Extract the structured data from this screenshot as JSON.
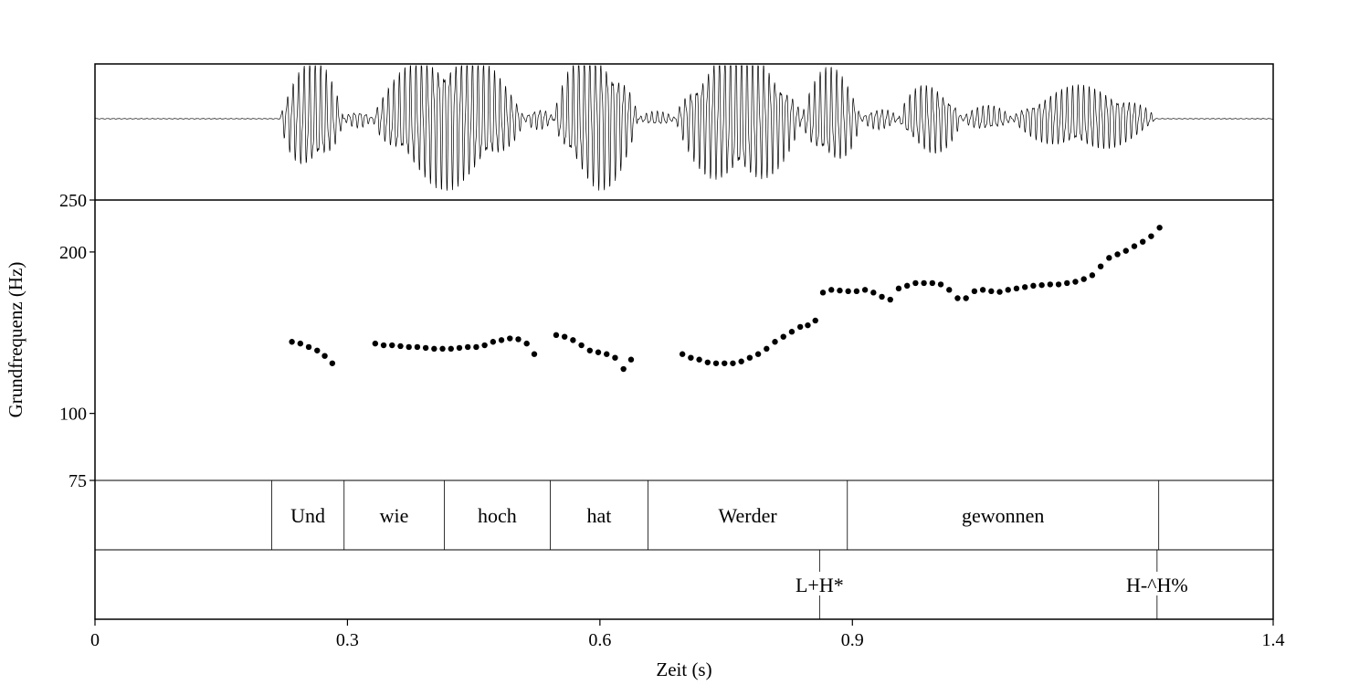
{
  "chart_data": {
    "type": "scatter",
    "title": "",
    "xlabel": "Zeit (s)",
    "ylabel": "Grundfrequenz (Hz)",
    "xlim": [
      0,
      1.4
    ],
    "ylim": [
      75,
      250
    ],
    "y_scale": "log",
    "grid": false,
    "x_ticks": [
      {
        "value": 0,
        "label": "0"
      },
      {
        "value": 0.3,
        "label": "0.3"
      },
      {
        "value": 0.6,
        "label": "0.6"
      },
      {
        "value": 0.9,
        "label": "0.9"
      },
      {
        "value": 1.4,
        "label": "1.4"
      }
    ],
    "y_ticks": [
      {
        "value": 250,
        "label": "250"
      },
      {
        "value": 200,
        "label": "200"
      },
      {
        "value": 100,
        "label": "100"
      },
      {
        "value": 75,
        "label": "75"
      }
    ],
    "pitch_points": [
      {
        "x": 0.234,
        "y": 136
      },
      {
        "x": 0.244,
        "y": 135
      },
      {
        "x": 0.254,
        "y": 133
      },
      {
        "x": 0.264,
        "y": 131
      },
      {
        "x": 0.273,
        "y": 128
      },
      {
        "x": 0.282,
        "y": 124
      },
      {
        "x": 0.333,
        "y": 135
      },
      {
        "x": 0.343,
        "y": 134
      },
      {
        "x": 0.353,
        "y": 134
      },
      {
        "x": 0.363,
        "y": 133.5
      },
      {
        "x": 0.373,
        "y": 133
      },
      {
        "x": 0.383,
        "y": 133
      },
      {
        "x": 0.393,
        "y": 132.5
      },
      {
        "x": 0.403,
        "y": 132
      },
      {
        "x": 0.413,
        "y": 132
      },
      {
        "x": 0.423,
        "y": 132
      },
      {
        "x": 0.433,
        "y": 132.5
      },
      {
        "x": 0.443,
        "y": 133
      },
      {
        "x": 0.453,
        "y": 133
      },
      {
        "x": 0.463,
        "y": 134
      },
      {
        "x": 0.473,
        "y": 136
      },
      {
        "x": 0.483,
        "y": 137
      },
      {
        "x": 0.493,
        "y": 138
      },
      {
        "x": 0.503,
        "y": 137.5
      },
      {
        "x": 0.513,
        "y": 135
      },
      {
        "x": 0.522,
        "y": 129
      },
      {
        "x": 0.548,
        "y": 140
      },
      {
        "x": 0.558,
        "y": 139
      },
      {
        "x": 0.568,
        "y": 137
      },
      {
        "x": 0.578,
        "y": 134
      },
      {
        "x": 0.588,
        "y": 131
      },
      {
        "x": 0.598,
        "y": 130
      },
      {
        "x": 0.608,
        "y": 129
      },
      {
        "x": 0.618,
        "y": 127
      },
      {
        "x": 0.628,
        "y": 121
      },
      {
        "x": 0.637,
        "y": 126
      },
      {
        "x": 0.698,
        "y": 129
      },
      {
        "x": 0.708,
        "y": 127
      },
      {
        "x": 0.718,
        "y": 126
      },
      {
        "x": 0.728,
        "y": 124.5
      },
      {
        "x": 0.738,
        "y": 124
      },
      {
        "x": 0.748,
        "y": 124
      },
      {
        "x": 0.758,
        "y": 124
      },
      {
        "x": 0.768,
        "y": 125
      },
      {
        "x": 0.778,
        "y": 127
      },
      {
        "x": 0.788,
        "y": 129
      },
      {
        "x": 0.798,
        "y": 132
      },
      {
        "x": 0.808,
        "y": 136
      },
      {
        "x": 0.818,
        "y": 139
      },
      {
        "x": 0.828,
        "y": 142
      },
      {
        "x": 0.838,
        "y": 145
      },
      {
        "x": 0.847,
        "y": 146
      },
      {
        "x": 0.856,
        "y": 149
      },
      {
        "x": 0.865,
        "y": 168
      },
      {
        "x": 0.875,
        "y": 170
      },
      {
        "x": 0.885,
        "y": 169.5
      },
      {
        "x": 0.895,
        "y": 169
      },
      {
        "x": 0.905,
        "y": 169
      },
      {
        "x": 0.915,
        "y": 170
      },
      {
        "x": 0.925,
        "y": 168
      },
      {
        "x": 0.935,
        "y": 165
      },
      {
        "x": 0.945,
        "y": 163
      },
      {
        "x": 0.955,
        "y": 171
      },
      {
        "x": 0.965,
        "y": 173
      },
      {
        "x": 0.975,
        "y": 175
      },
      {
        "x": 0.985,
        "y": 175
      },
      {
        "x": 0.995,
        "y": 175
      },
      {
        "x": 1.005,
        "y": 174
      },
      {
        "x": 1.015,
        "y": 170
      },
      {
        "x": 1.025,
        "y": 164
      },
      {
        "x": 1.035,
        "y": 164
      },
      {
        "x": 1.045,
        "y": 169
      },
      {
        "x": 1.055,
        "y": 170
      },
      {
        "x": 1.065,
        "y": 169
      },
      {
        "x": 1.075,
        "y": 168.5
      },
      {
        "x": 1.085,
        "y": 170
      },
      {
        "x": 1.095,
        "y": 171
      },
      {
        "x": 1.105,
        "y": 172
      },
      {
        "x": 1.115,
        "y": 173
      },
      {
        "x": 1.125,
        "y": 173.5
      },
      {
        "x": 1.135,
        "y": 174
      },
      {
        "x": 1.145,
        "y": 174
      },
      {
        "x": 1.155,
        "y": 175
      },
      {
        "x": 1.165,
        "y": 176
      },
      {
        "x": 1.175,
        "y": 178
      },
      {
        "x": 1.185,
        "y": 181
      },
      {
        "x": 1.195,
        "y": 188
      },
      {
        "x": 1.205,
        "y": 195
      },
      {
        "x": 1.215,
        "y": 198
      },
      {
        "x": 1.225,
        "y": 201
      },
      {
        "x": 1.235,
        "y": 205
      },
      {
        "x": 1.245,
        "y": 209
      },
      {
        "x": 1.255,
        "y": 214
      },
      {
        "x": 1.265,
        "y": 222
      }
    ],
    "word_tier": {
      "boundaries": [
        0.21,
        0.296,
        0.415,
        0.541,
        0.657,
        0.894,
        1.264
      ],
      "words": [
        {
          "label": "Und",
          "start": 0.21,
          "end": 0.296
        },
        {
          "label": "wie",
          "start": 0.296,
          "end": 0.415
        },
        {
          "label": "hoch",
          "start": 0.415,
          "end": 0.541
        },
        {
          "label": "hat",
          "start": 0.541,
          "end": 0.657
        },
        {
          "label": "Werder",
          "start": 0.657,
          "end": 0.894
        },
        {
          "label": "gewonnen",
          "start": 0.894,
          "end": 1.264
        }
      ]
    },
    "tone_tier": {
      "events": [
        {
          "label": "L+H*",
          "time": 0.861
        },
        {
          "label": "H-^H%",
          "time": 1.262
        }
      ]
    },
    "waveform": {
      "segments": [
        {
          "start": 0.22,
          "end": 0.295,
          "amplitude": 0.8
        },
        {
          "start": 0.295,
          "end": 0.33,
          "amplitude": 0.12
        },
        {
          "start": 0.33,
          "end": 0.51,
          "amplitude": 0.95
        },
        {
          "start": 0.51,
          "end": 0.545,
          "amplitude": 0.15
        },
        {
          "start": 0.545,
          "end": 0.645,
          "amplitude": 1.0
        },
        {
          "start": 0.645,
          "end": 0.69,
          "amplitude": 0.1
        },
        {
          "start": 0.69,
          "end": 0.84,
          "amplitude": 1.0
        },
        {
          "start": 0.84,
          "end": 0.91,
          "amplitude": 0.7
        },
        {
          "start": 0.91,
          "end": 0.955,
          "amplitude": 0.15
        },
        {
          "start": 0.955,
          "end": 1.03,
          "amplitude": 0.5
        },
        {
          "start": 1.03,
          "end": 1.09,
          "amplitude": 0.18
        },
        {
          "start": 1.09,
          "end": 1.26,
          "amplitude": 0.45
        }
      ]
    }
  }
}
